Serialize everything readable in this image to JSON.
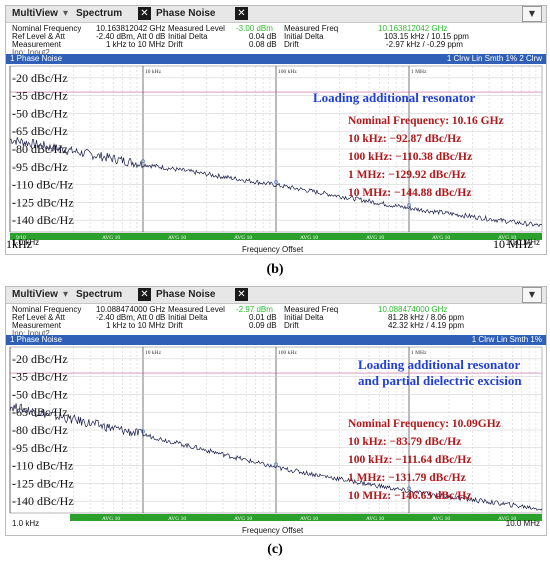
{
  "panels": [
    {
      "tabs": {
        "multiview": "MultiView",
        "spectrum": "Spectrum",
        "phase_noise": "Phase Noise"
      },
      "info": {
        "nominal_frequency_label": "Nominal Frequency",
        "nominal_frequency_value": "10.163812042 GHz",
        "ref_level_label": "Ref Level & Att",
        "ref_level_value": "-2.40 dBm, Att 0 dB",
        "measurement_label": "Measurement",
        "measurement_value": "1 kHz to 10 MHz",
        "input_label": "Inp: Input2",
        "measured_level_label": "Measured Level",
        "measured_level_value": "-3.00 dBm",
        "initial_delta_label": "Initial Delta",
        "initial_delta_value": "0.04 dB",
        "drift_label": "Drift",
        "drift_value": "0.08 dB",
        "measured_freq_label": "Measured Freq",
        "measured_freq_value": "10.163812042 GHz",
        "initial_delta2_value": "103.15 kHz / 10.15 ppm",
        "drift2_value": "-2.97 kHz / -0.29 ppm"
      },
      "window_title": "1 Phase Noise",
      "window_trace_info": "1 Clrw Lin Smth 1%   2 Clrw",
      "decade_labels": [
        "10 kHz",
        "100 kHz",
        "1 MHz"
      ],
      "y_labels": [
        "-20 dBc/Hz",
        "-35 dBc/Hz",
        "-50 dBc/Hz",
        "-65 dBc/Hz",
        "-80 dBc/Hz",
        "-95 dBc/Hz",
        "-110 dBc/Hz",
        "-125 dBc/Hz",
        "-140 dBc/Hz"
      ],
      "heading": [
        "Loading additional resonator"
      ],
      "annotations": [
        "Nominal Frequency: 10.16 GHz",
        "10 kHz: −92.87 dBc/Hz",
        "100 kHz: −110.38 dBc/Hz",
        "1 MHz: −129.92 dBc/Hz",
        "10 MHz: −144.88 dBc/Hz"
      ],
      "status_left": "9/10",
      "status_avg": "AVG 10",
      "x_start": "1.0 kHz",
      "x_end": "10.0 MHz",
      "x_axis_label": "Frequency Offset",
      "overlay_left": "1kHz",
      "overlay_right": "10 MHz",
      "caption": "(b)"
    },
    {
      "tabs": {
        "multiview": "MultiView",
        "spectrum": "Spectrum",
        "phase_noise": "Phase Noise"
      },
      "info": {
        "nominal_frequency_label": "Nominal Frequency",
        "nominal_frequency_value": "10.088474000 GHz",
        "ref_level_label": "Ref Level & Att",
        "ref_level_value": "-2.40 dBm, Att 0 dB",
        "measurement_label": "Measurement",
        "measurement_value": "1 kHz to 10 MHz",
        "input_label": "Inp: Input2",
        "measured_level_label": "Measured Level",
        "measured_level_value": "-2.97 dBm",
        "initial_delta_label": "Initial Delta",
        "initial_delta_value": "0.01 dB",
        "drift_label": "Drift",
        "drift_value": "0.09 dB",
        "measured_freq_label": "Measured Freq",
        "measured_freq_value": "10.088474000 GHz",
        "initial_delta2_value": "81.28 kHz / 8.06 ppm",
        "drift2_value": "42.32 kHz / 4.19 ppm"
      },
      "window_title": "1 Phase Noise",
      "window_trace_info": "1 Clrw Lin Smth 1%",
      "decade_labels": [
        "10 kHz",
        "100 kHz",
        "1 MHz"
      ],
      "y_labels": [
        "-20 dBc/Hz",
        "-35 dBc/Hz",
        "-50 dBc/Hz",
        "-65 dBc/Hz",
        "-80 dBc/Hz",
        "-95 dBc/Hz",
        "-110 dBc/Hz",
        "-125 dBc/Hz",
        "-140 dBc/Hz"
      ],
      "heading": [
        "Loading additional resonator",
        "and partial dielectric excision"
      ],
      "annotations": [
        "Nominal Frequency: 10.09GHz",
        "10 kHz: −83.79 dBc/Hz",
        "100 kHz: −111.64 dBc/Hz",
        "1 MHz: −131.79 dBc/Hz",
        "10 MHz: −146.63 dBc/Hz"
      ],
      "status_left": "",
      "status_avg": "AVG 10",
      "x_start": "1.0 kHz",
      "x_end": "10.0 MHz",
      "x_axis_label": "Frequency Offset",
      "overlay_left": "",
      "overlay_right": "",
      "caption": "(c)"
    }
  ],
  "colors": {
    "title_bar": "#2f5fb7",
    "status_green": "#2ca02c",
    "heading_blue": "#1f3fd8",
    "annotation_red": "#b0181c",
    "trace": "#1b1f4a"
  }
}
